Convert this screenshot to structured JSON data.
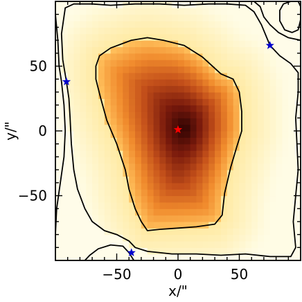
{
  "chart_data": {
    "type": "heatmap",
    "xlabel": "x/\"",
    "ylabel": "y/\"",
    "xlim": [
      -100,
      100
    ],
    "ylim": [
      -100,
      100
    ],
    "xticks": [
      -50,
      0,
      50
    ],
    "yticks": [
      -50,
      0,
      50
    ],
    "xtick_labels": [
      "−50",
      "0",
      "50"
    ],
    "ytick_labels": [
      "−50",
      "0",
      "50"
    ],
    "grid": false,
    "colormap": [
      "#ffffff",
      "#fffbe0",
      "#ffe9a0",
      "#ffbe5a",
      "#f08a2c",
      "#c4501a",
      "#7a1a0c",
      "#2a0202"
    ],
    "peak_center": [
      5,
      2
    ],
    "contours": [
      {
        "level": "inner",
        "points": [
          [
            -67,
            50
          ],
          [
            -64,
            58
          ],
          [
            -55,
            64
          ],
          [
            -38,
            70
          ],
          [
            -25,
            72
          ],
          [
            -12,
            70
          ],
          [
            5,
            66
          ],
          [
            20,
            57
          ],
          [
            35,
            44
          ],
          [
            45,
            40
          ],
          [
            50,
            30
          ],
          [
            52,
            15
          ],
          [
            52,
            0
          ],
          [
            48,
            -12
          ],
          [
            43,
            -28
          ],
          [
            38,
            -48
          ],
          [
            36,
            -65
          ],
          [
            30,
            -72
          ],
          [
            15,
            -74
          ],
          [
            0,
            -75
          ],
          [
            -15,
            -76
          ],
          [
            -25,
            -77
          ],
          [
            -30,
            -70
          ],
          [
            -35,
            -60
          ],
          [
            -40,
            -45
          ],
          [
            -43,
            -30
          ],
          [
            -50,
            -10
          ],
          [
            -58,
            8
          ],
          [
            -63,
            25
          ],
          [
            -67,
            40
          ],
          [
            -67,
            50
          ]
        ]
      },
      {
        "level": "middle",
        "points": [
          [
            -92,
            95
          ],
          [
            -85,
            98
          ],
          [
            -70,
            98
          ],
          [
            -55,
            97
          ],
          [
            -35,
            98
          ],
          [
            -15,
            98
          ],
          [
            5,
            97
          ],
          [
            25,
            98
          ],
          [
            40,
            98
          ],
          [
            55,
            97
          ],
          [
            62,
            92
          ],
          [
            68,
            82
          ],
          [
            75,
            66
          ],
          [
            83,
            58
          ],
          [
            92,
            52
          ],
          [
            98,
            45
          ],
          [
            98,
            30
          ],
          [
            96,
            10
          ],
          [
            97,
            -10
          ],
          [
            98,
            -30
          ],
          [
            96,
            -50
          ],
          [
            94,
            -70
          ],
          [
            96,
            -90
          ],
          [
            92,
            -97
          ],
          [
            75,
            -97
          ],
          [
            55,
            -95
          ],
          [
            35,
            -96
          ],
          [
            15,
            -95
          ],
          [
            -5,
            -95
          ],
          [
            -25,
            -93
          ],
          [
            -35,
            -90
          ],
          [
            -40,
            -85
          ],
          [
            -50,
            -80
          ],
          [
            -60,
            -77
          ],
          [
            -70,
            -70
          ],
          [
            -76,
            -60
          ],
          [
            -82,
            -45
          ],
          [
            -85,
            -30
          ],
          [
            -87,
            -10
          ],
          [
            -88,
            10
          ],
          [
            -89,
            25
          ],
          [
            -91,
            38
          ],
          [
            -94,
            55
          ],
          [
            -95,
            75
          ],
          [
            -92,
            95
          ]
        ]
      },
      {
        "level": "outer",
        "points": [
          [
            -96,
            100
          ],
          [
            -70,
            100
          ],
          [
            -40,
            100
          ],
          [
            -10,
            100
          ],
          [
            20,
            100
          ],
          [
            50,
            100
          ],
          [
            62,
            100
          ],
          [
            67,
            96
          ],
          [
            70,
            88
          ],
          [
            75,
            82
          ],
          [
            82,
            76
          ],
          [
            90,
            72
          ],
          [
            100,
            70
          ]
        ]
      },
      {
        "level": "outer",
        "points": [
          [
            -100,
            90
          ],
          [
            -98,
            70
          ],
          [
            -97,
            50
          ],
          [
            -95,
            38
          ],
          [
            -93,
            20
          ],
          [
            -92,
            0
          ],
          [
            -93,
            -20
          ],
          [
            -96,
            -40
          ],
          [
            -99,
            -60
          ],
          [
            -100,
            -80
          ]
        ]
      },
      {
        "level": "outer",
        "points": [
          [
            -76,
            -100
          ],
          [
            -72,
            -96
          ],
          [
            -65,
            -91
          ],
          [
            -55,
            -88
          ],
          [
            -45,
            -89
          ],
          [
            -40,
            -94
          ],
          [
            -36,
            -100
          ]
        ]
      },
      {
        "level": "local-max",
        "points": [
          [
            83,
            93
          ],
          [
            86,
            98
          ],
          [
            92,
            100
          ],
          [
            98,
            100
          ],
          [
            100,
            96
          ],
          [
            100,
            86
          ],
          [
            98,
            78
          ],
          [
            93,
            76
          ],
          [
            87,
            78
          ],
          [
            83,
            85
          ],
          [
            83,
            93
          ]
        ]
      }
    ],
    "markers": [
      {
        "x": 0,
        "y": 1,
        "symbol": "star",
        "color": "#ff0000"
      },
      {
        "x": 75,
        "y": 66,
        "symbol": "star",
        "color": "#0000cc"
      },
      {
        "x": -91,
        "y": 38,
        "symbol": "star",
        "color": "#0000cc"
      },
      {
        "x": -38,
        "y": -94,
        "symbol": "star",
        "color": "#0000cc"
      }
    ]
  }
}
